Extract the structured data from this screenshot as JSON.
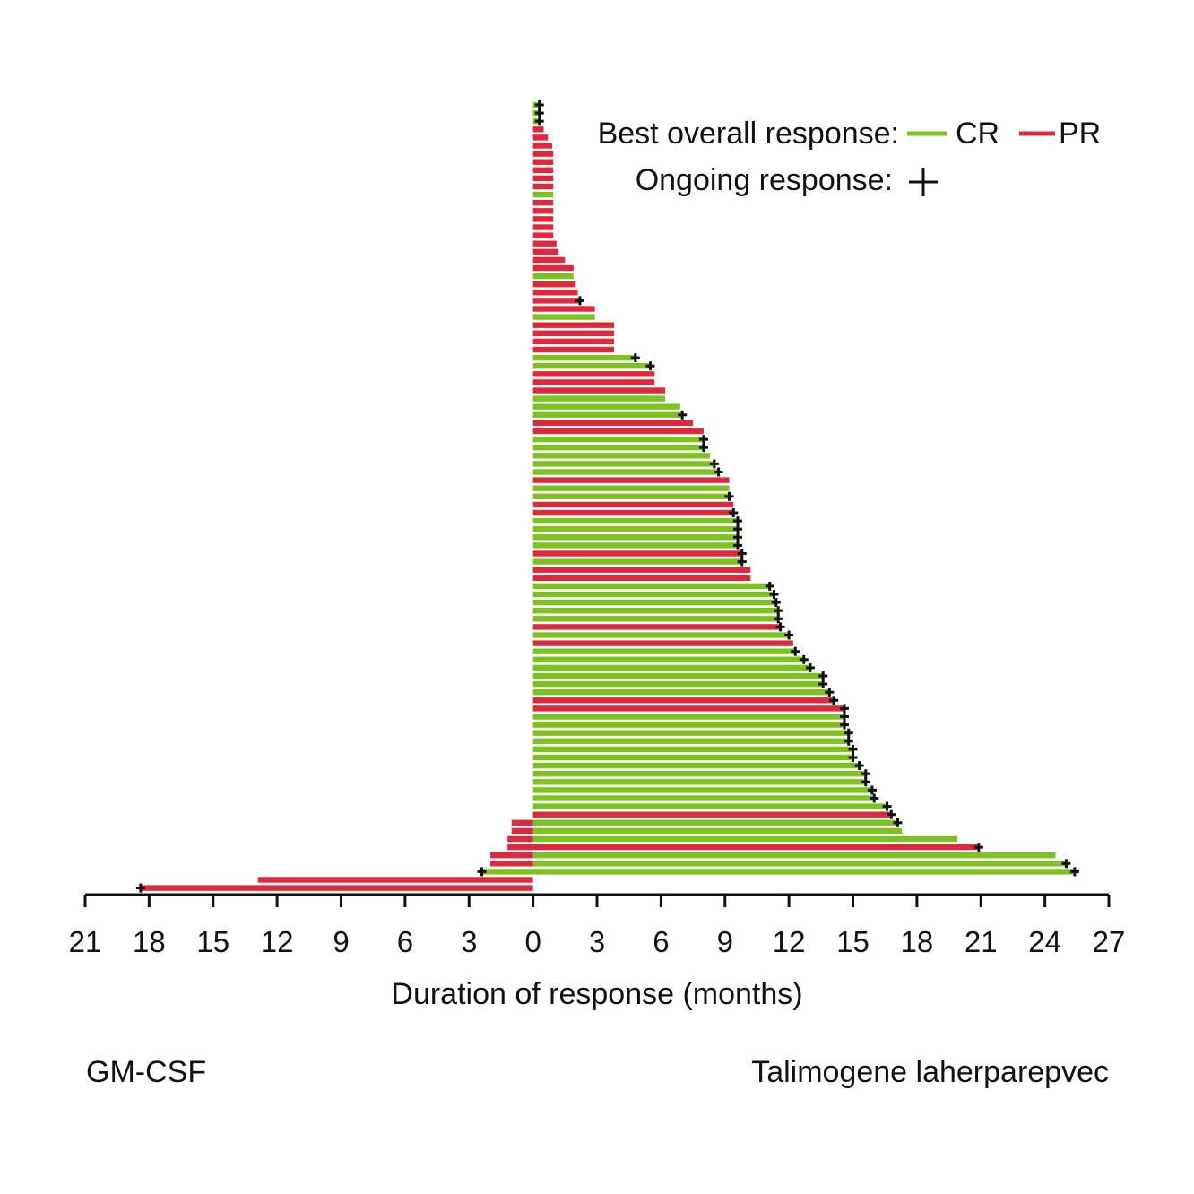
{
  "chart_data": {
    "type": "bar",
    "orientation": "horizontal-diverging",
    "xlabel": "Duration of response (months)",
    "x_ticks": [
      "21",
      "18",
      "15",
      "12",
      "9",
      "6",
      "3",
      "0",
      "3",
      "6",
      "9",
      "12",
      "15",
      "18",
      "21",
      "24",
      "27"
    ],
    "xlim": [
      -21,
      27
    ],
    "left_group_label": "GM-CSF",
    "right_group_label": "Talimogene laherparepvec",
    "legend": {
      "title": "Best overall response:",
      "entries": [
        {
          "label": "CR",
          "color": "#7dc21e"
        },
        {
          "label": "PR",
          "color": "#e0283c"
        }
      ],
      "ongoing_label": "Ongoing response:",
      "ongoing_symbol": "+",
      "placement": "top-right"
    },
    "colors": {
      "CR": "#7dc21e",
      "PR": "#e0283c",
      "marker": "#111111"
    },
    "series": [
      {
        "name": "Talimogene laherparepvec",
        "bars": [
          {
            "value": 0.3,
            "response": "CR",
            "ongoing": true
          },
          {
            "value": 0.3,
            "response": "CR",
            "ongoing": true
          },
          {
            "value": 0.3,
            "response": "CR",
            "ongoing": true
          },
          {
            "value": 0.5,
            "response": "PR",
            "ongoing": false
          },
          {
            "value": 0.7,
            "response": "PR",
            "ongoing": false
          },
          {
            "value": 0.9,
            "response": "PR",
            "ongoing": false
          },
          {
            "value": 0.95,
            "response": "PR",
            "ongoing": false
          },
          {
            "value": 0.95,
            "response": "PR",
            "ongoing": false
          },
          {
            "value": 0.95,
            "response": "PR",
            "ongoing": false
          },
          {
            "value": 0.95,
            "response": "PR",
            "ongoing": false
          },
          {
            "value": 0.95,
            "response": "PR",
            "ongoing": false
          },
          {
            "value": 0.95,
            "response": "CR",
            "ongoing": false
          },
          {
            "value": 0.95,
            "response": "PR",
            "ongoing": false
          },
          {
            "value": 0.95,
            "response": "PR",
            "ongoing": false
          },
          {
            "value": 0.95,
            "response": "PR",
            "ongoing": false
          },
          {
            "value": 0.95,
            "response": "PR",
            "ongoing": false
          },
          {
            "value": 0.95,
            "response": "PR",
            "ongoing": false
          },
          {
            "value": 1.1,
            "response": "PR",
            "ongoing": false
          },
          {
            "value": 1.2,
            "response": "PR",
            "ongoing": false
          },
          {
            "value": 1.5,
            "response": "PR",
            "ongoing": false
          },
          {
            "value": 1.9,
            "response": "PR",
            "ongoing": false
          },
          {
            "value": 1.9,
            "response": "CR",
            "ongoing": false
          },
          {
            "value": 2.0,
            "response": "PR",
            "ongoing": false
          },
          {
            "value": 2.1,
            "response": "PR",
            "ongoing": false
          },
          {
            "value": 2.2,
            "response": "PR",
            "ongoing": true
          },
          {
            "value": 2.9,
            "response": "PR",
            "ongoing": false
          },
          {
            "value": 2.9,
            "response": "CR",
            "ongoing": false
          },
          {
            "value": 3.8,
            "response": "PR",
            "ongoing": false
          },
          {
            "value": 3.8,
            "response": "PR",
            "ongoing": false
          },
          {
            "value": 3.8,
            "response": "PR",
            "ongoing": false
          },
          {
            "value": 3.8,
            "response": "PR",
            "ongoing": false
          },
          {
            "value": 4.8,
            "response": "CR",
            "ongoing": true
          },
          {
            "value": 5.5,
            "response": "CR",
            "ongoing": true
          },
          {
            "value": 5.7,
            "response": "PR",
            "ongoing": false
          },
          {
            "value": 5.7,
            "response": "PR",
            "ongoing": false
          },
          {
            "value": 6.2,
            "response": "PR",
            "ongoing": false
          },
          {
            "value": 6.2,
            "response": "CR",
            "ongoing": false
          },
          {
            "value": 6.9,
            "response": "CR",
            "ongoing": false
          },
          {
            "value": 7.0,
            "response": "CR",
            "ongoing": true
          },
          {
            "value": 7.5,
            "response": "PR",
            "ongoing": false
          },
          {
            "value": 8.0,
            "response": "PR",
            "ongoing": false
          },
          {
            "value": 8.0,
            "response": "CR",
            "ongoing": true
          },
          {
            "value": 8.0,
            "response": "CR",
            "ongoing": true
          },
          {
            "value": 8.3,
            "response": "CR",
            "ongoing": false
          },
          {
            "value": 8.5,
            "response": "CR",
            "ongoing": true
          },
          {
            "value": 8.7,
            "response": "CR",
            "ongoing": true
          },
          {
            "value": 9.2,
            "response": "PR",
            "ongoing": false
          },
          {
            "value": 9.2,
            "response": "CR",
            "ongoing": false
          },
          {
            "value": 9.2,
            "response": "CR",
            "ongoing": true
          },
          {
            "value": 9.4,
            "response": "PR",
            "ongoing": false
          },
          {
            "value": 9.4,
            "response": "PR",
            "ongoing": true
          },
          {
            "value": 9.6,
            "response": "CR",
            "ongoing": true
          },
          {
            "value": 9.6,
            "response": "CR",
            "ongoing": true
          },
          {
            "value": 9.6,
            "response": "CR",
            "ongoing": true
          },
          {
            "value": 9.6,
            "response": "CR",
            "ongoing": true
          },
          {
            "value": 9.8,
            "response": "PR",
            "ongoing": true
          },
          {
            "value": 9.8,
            "response": "CR",
            "ongoing": true
          },
          {
            "value": 10.2,
            "response": "PR",
            "ongoing": false
          },
          {
            "value": 10.2,
            "response": "PR",
            "ongoing": false
          },
          {
            "value": 11.1,
            "response": "CR",
            "ongoing": true
          },
          {
            "value": 11.3,
            "response": "CR",
            "ongoing": true
          },
          {
            "value": 11.4,
            "response": "CR",
            "ongoing": true
          },
          {
            "value": 11.5,
            "response": "CR",
            "ongoing": true
          },
          {
            "value": 11.5,
            "response": "CR",
            "ongoing": true
          },
          {
            "value": 11.6,
            "response": "PR",
            "ongoing": true
          },
          {
            "value": 12.0,
            "response": "CR",
            "ongoing": true
          },
          {
            "value": 12.2,
            "response": "PR",
            "ongoing": false
          },
          {
            "value": 12.3,
            "response": "CR",
            "ongoing": true
          },
          {
            "value": 12.7,
            "response": "CR",
            "ongoing": true
          },
          {
            "value": 13.0,
            "response": "CR",
            "ongoing": true
          },
          {
            "value": 13.6,
            "response": "CR",
            "ongoing": true
          },
          {
            "value": 13.6,
            "response": "CR",
            "ongoing": true
          },
          {
            "value": 13.9,
            "response": "CR",
            "ongoing": true
          },
          {
            "value": 14.1,
            "response": "PR",
            "ongoing": true
          },
          {
            "value": 14.6,
            "response": "PR",
            "ongoing": true
          },
          {
            "value": 14.6,
            "response": "CR",
            "ongoing": true
          },
          {
            "value": 14.6,
            "response": "CR",
            "ongoing": true
          },
          {
            "value": 14.8,
            "response": "CR",
            "ongoing": true
          },
          {
            "value": 14.8,
            "response": "CR",
            "ongoing": true
          },
          {
            "value": 15.0,
            "response": "CR",
            "ongoing": true
          },
          {
            "value": 15.0,
            "response": "CR",
            "ongoing": true
          },
          {
            "value": 15.3,
            "response": "CR",
            "ongoing": true
          },
          {
            "value": 15.6,
            "response": "CR",
            "ongoing": true
          },
          {
            "value": 15.6,
            "response": "CR",
            "ongoing": true
          },
          {
            "value": 15.9,
            "response": "CR",
            "ongoing": true
          },
          {
            "value": 16.0,
            "response": "CR",
            "ongoing": true
          },
          {
            "value": 16.6,
            "response": "CR",
            "ongoing": true
          },
          {
            "value": 16.8,
            "response": "PR",
            "ongoing": true
          },
          {
            "value": 17.1,
            "response": "CR",
            "ongoing": true
          },
          {
            "value": 17.3,
            "response": "CR",
            "ongoing": false
          },
          {
            "value": 19.9,
            "response": "CR",
            "ongoing": false
          },
          {
            "value": 20.9,
            "response": "PR",
            "ongoing": true
          },
          {
            "value": 24.5,
            "response": "CR",
            "ongoing": false
          },
          {
            "value": 25.0,
            "response": "CR",
            "ongoing": true
          },
          {
            "value": 25.4,
            "response": "CR",
            "ongoing": true
          }
        ]
      },
      {
        "name": "GM-CSF",
        "bars": [
          {
            "index": 88,
            "value": 1.0,
            "response": "PR",
            "ongoing": false
          },
          {
            "index": 89,
            "value": 1.0,
            "response": "PR",
            "ongoing": false
          },
          {
            "index": 90,
            "value": 1.2,
            "response": "PR",
            "ongoing": false
          },
          {
            "index": 91,
            "value": 1.2,
            "response": "PR",
            "ongoing": false
          },
          {
            "index": 92,
            "value": 2.0,
            "response": "PR",
            "ongoing": false
          },
          {
            "index": 93,
            "value": 2.0,
            "response": "PR",
            "ongoing": false
          },
          {
            "index": 94,
            "value": 2.4,
            "response": "CR",
            "ongoing": true
          },
          {
            "index": 95,
            "value": 12.9,
            "response": "PR",
            "ongoing": false
          },
          {
            "index": 96,
            "value": 18.4,
            "response": "PR",
            "ongoing": true
          }
        ]
      }
    ]
  }
}
